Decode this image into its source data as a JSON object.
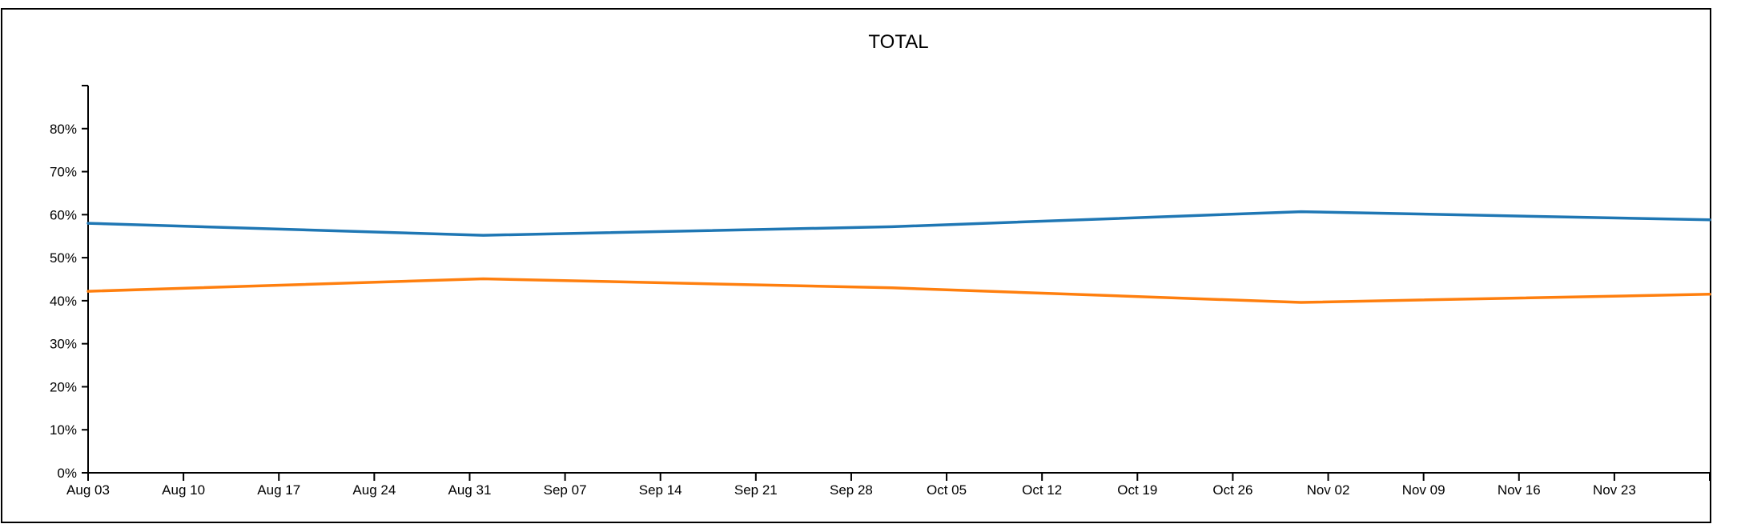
{
  "chart_data": {
    "type": "line",
    "title": "TOTAL",
    "xlabel": "",
    "ylabel": "",
    "x": [
      "2020-08-03",
      "2020-09-01",
      "2020-10-01",
      "2020-10-31",
      "2020-11-30"
    ],
    "series": [
      {
        "color": "#1f77b4",
        "values": [
          0.58,
          0.552,
          0.572,
          0.607,
          0.588
        ]
      },
      {
        "color": "#ff7f0e",
        "values": [
          0.422,
          0.451,
          0.43,
          0.396,
          0.415
        ]
      }
    ],
    "ylim": [
      0,
      0.9
    ],
    "y_ticks": [
      0,
      0.1,
      0.2,
      0.3,
      0.4,
      0.5,
      0.6,
      0.7,
      0.8
    ],
    "y_tick_labels": [
      "0%",
      "10%",
      "20%",
      "30%",
      "40%",
      "50%",
      "60%",
      "70%",
      "80%"
    ],
    "xlim": [
      "2020-08-03",
      "2020-11-30"
    ],
    "x_ticks": [
      "2020-08-03",
      "2020-08-10",
      "2020-08-17",
      "2020-08-24",
      "2020-08-31",
      "2020-09-07",
      "2020-09-14",
      "2020-09-21",
      "2020-09-28",
      "2020-10-05",
      "2020-10-12",
      "2020-10-19",
      "2020-10-26",
      "2020-11-02",
      "2020-11-09",
      "2020-11-16",
      "2020-11-23"
    ],
    "x_tick_labels": [
      "Aug 03",
      "Aug 10",
      "Aug 17",
      "Aug 24",
      "Aug 31",
      "Sep 07",
      "Sep 14",
      "Sep 21",
      "Sep 28",
      "Oct 05",
      "Oct 12",
      "Oct 19",
      "Oct 26",
      "Nov 02",
      "Nov 09",
      "Nov 16",
      "Nov 23"
    ],
    "grid": false,
    "legend": "none"
  }
}
